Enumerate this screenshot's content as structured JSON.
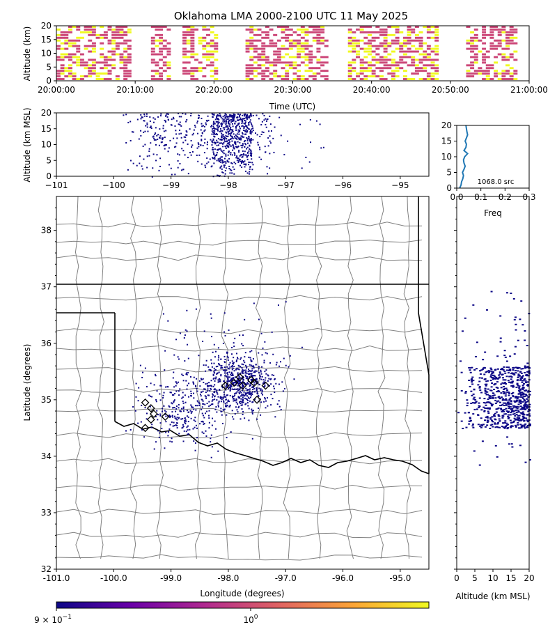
{
  "title": "Oklahoma LMA 2000-2100 UTC 11 May 2025",
  "colors": {
    "density_low": "#0d0887",
    "density_mid": "#cc4778",
    "density_high": "#f0f921",
    "profile_line": "#1f77b4",
    "county_lines": "#808080",
    "state_lines": "#000000"
  },
  "chart_data": [
    {
      "name": "time_height",
      "type": "heatmap",
      "xlabel": "Time (UTC)",
      "ylabel": "Altitude (km)",
      "xlim": [
        "20:00:00",
        "21:00:00"
      ],
      "ylim": [
        0,
        20
      ],
      "xticks": [
        "20:00:00",
        "20:10:00",
        "20:20:00",
        "20:30:00",
        "20:40:00",
        "20:50:00",
        "21:00:00"
      ],
      "yticks": [
        0,
        5,
        10,
        15,
        20
      ],
      "active_periods_min": [
        [
          0,
          9
        ],
        [
          12,
          14
        ],
        [
          16,
          20
        ],
        [
          24,
          34
        ],
        [
          37,
          48
        ],
        [
          52,
          58
        ]
      ],
      "activity_peaks_min": [
        2,
        6,
        19,
        30,
        38,
        44,
        48
      ]
    },
    {
      "name": "longitude_altitude",
      "type": "scatter",
      "xlabel": "",
      "ylabel": "Altitude (km MSL)",
      "xlim": [
        -101,
        -94.5
      ],
      "ylim": [
        0,
        20
      ],
      "xticks": [
        -101,
        -100,
        -99,
        -98,
        -97,
        -96,
        -95
      ],
      "yticks": [
        0,
        5,
        10,
        15,
        20
      ],
      "lon_range": [
        -99.9,
        -96.3
      ],
      "core_lon": [
        -98.3,
        -97.6
      ]
    },
    {
      "name": "altitude_histogram",
      "type": "line",
      "xlabel": "Freq",
      "ylabel": "",
      "xlim": [
        0,
        0.3
      ],
      "ylim": [
        0,
        20
      ],
      "xticks": [
        "0.0",
        "0.1",
        "0.2",
        "0.3"
      ],
      "yticks": [
        0,
        5,
        10,
        15,
        20
      ],
      "annotation": "1068.0 src",
      "series": [
        {
          "altitude": [
            0,
            1,
            2,
            3,
            4,
            5,
            6,
            7,
            8,
            9,
            10,
            11,
            12,
            13,
            14,
            15,
            16,
            17,
            18,
            19,
            20
          ],
          "freq": [
            0.012,
            0.018,
            0.02,
            0.025,
            0.028,
            0.024,
            0.03,
            0.035,
            0.03,
            0.028,
            0.033,
            0.045,
            0.03,
            0.038,
            0.04,
            0.035,
            0.04,
            0.045,
            0.042,
            0.04,
            0.038
          ]
        }
      ]
    },
    {
      "name": "plan_view",
      "type": "scatter",
      "xlabel": "Longitude (degrees)",
      "ylabel": "Latitude (degrees)",
      "xlim": [
        -101,
        -94.5
      ],
      "ylim": [
        32,
        38.6
      ],
      "xticks": [
        "-101.0",
        "-100.0",
        "-99.0",
        "-98.0",
        "-97.0",
        "-96.0",
        "-95.0"
      ],
      "yticks": [
        32,
        33,
        34,
        35,
        36,
        37,
        38
      ],
      "sensor_stations": [
        [
          -97.8,
          35.4
        ],
        [
          -97.6,
          35.35
        ],
        [
          -97.9,
          35.3
        ],
        [
          -98.05,
          35.25
        ],
        [
          -97.75,
          35.25
        ],
        [
          -97.55,
          35.3
        ],
        [
          -97.35,
          35.25
        ],
        [
          -97.5,
          35.0
        ],
        [
          -99.45,
          34.95
        ],
        [
          -99.35,
          34.85
        ],
        [
          -99.3,
          34.75
        ],
        [
          -99.35,
          34.65
        ],
        [
          -99.45,
          34.5
        ],
        [
          -99.1,
          34.7
        ]
      ],
      "clusters": [
        {
          "lon": -97.8,
          "lat": 35.3,
          "sd": 0.25,
          "weight": 0.55
        },
        {
          "lon": -98.8,
          "lat": 34.8,
          "sd": 0.35,
          "weight": 0.3
        },
        {
          "lon": -98.1,
          "lat": 35.7,
          "sd": 0.5,
          "weight": 0.15
        }
      ]
    },
    {
      "name": "altitude_latitude",
      "type": "scatter",
      "xlabel": "Altitude (km MSL)",
      "ylabel": "",
      "xlim": [
        0,
        20
      ],
      "ylim": [
        32,
        38.6
      ],
      "xticks": [
        0,
        5,
        10,
        15,
        20
      ],
      "lat_core": [
        34.5,
        35.6
      ]
    }
  ],
  "colorbar": {
    "scale": "log",
    "colormap": "plasma",
    "label_low": "9 × 10",
    "label_low_exp": "−1",
    "label_high": "10",
    "label_high_exp": "0"
  }
}
